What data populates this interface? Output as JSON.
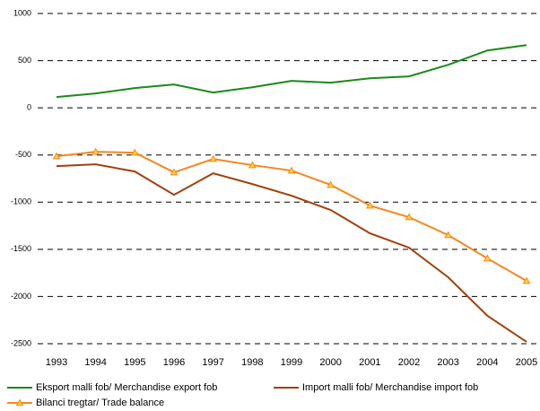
{
  "chart_data": {
    "type": "line",
    "categories": [
      "1993",
      "1994",
      "1995",
      "1996",
      "1997",
      "1998",
      "1999",
      "2000",
      "2001",
      "2002",
      "2003",
      "2004",
      "2005"
    ],
    "series": [
      {
        "name": "Eksport malli fob/ Merchandise export fob",
        "color": "#1a8a1a",
        "marker": "none",
        "values": [
          114,
          152,
          209,
          247,
          162,
          218,
          285,
          266,
          313,
          333,
          456,
          608,
          665
        ]
      },
      {
        "name": "Import malli fob/ Merchandise import fob",
        "color": "#a0410d",
        "marker": "none",
        "values": [
          -618,
          -599,
          -675,
          -922,
          -694,
          -808,
          -931,
          -1083,
          -1330,
          -1482,
          -1796,
          -2204,
          -2480
        ]
      },
      {
        "name": "Bilanci tregtar/ Trade balance",
        "color": "#f5861f",
        "marker": "triangle",
        "values": [
          -513,
          -466,
          -475,
          -684,
          -542,
          -608,
          -665,
          -817,
          -1036,
          -1159,
          -1349,
          -1596,
          -1834
        ]
      }
    ],
    "ylim": [
      -2500,
      1000
    ],
    "yticks": [
      -2500,
      -2000,
      -1500,
      -1000,
      -500,
      0,
      500,
      1000
    ],
    "grid": true,
    "legend": "bottom"
  }
}
